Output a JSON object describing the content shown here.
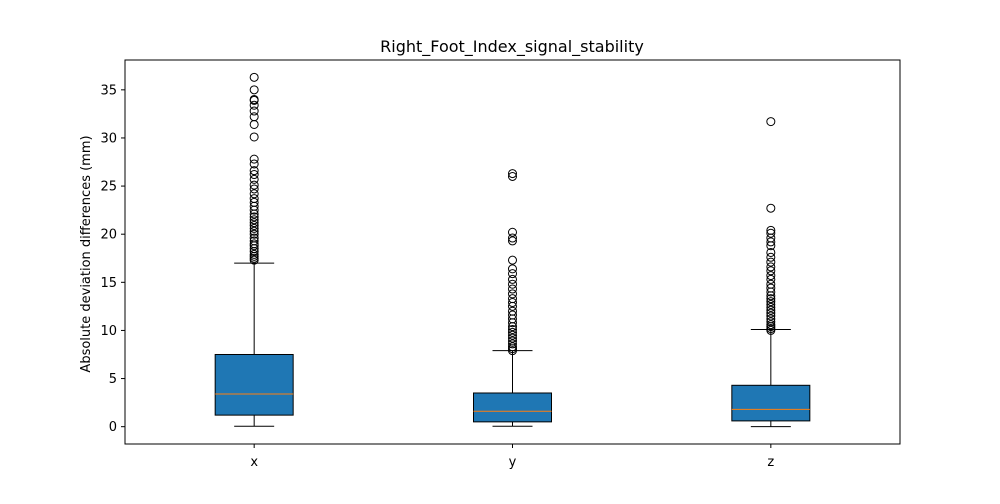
{
  "chart_data": {
    "type": "box",
    "title": "Right_Foot_Index_signal_stability",
    "xlabel": "",
    "ylabel": "Absolute deviation differences (mm)",
    "ylim": [
      -1.8,
      38.1
    ],
    "yticks": [
      0,
      5,
      10,
      15,
      20,
      25,
      30,
      35
    ],
    "categories": [
      "x",
      "y",
      "z"
    ],
    "box_color": "#1f77b4",
    "median_color": "#ff7f0e",
    "series": [
      {
        "name": "x",
        "whisker_low": 0.05,
        "q1": 1.2,
        "median": 3.4,
        "q3": 7.5,
        "whisker_high": 17.0,
        "outliers": [
          17.3,
          17.5,
          17.7,
          17.9,
          18.2,
          18.5,
          18.8,
          19.0,
          19.3,
          19.6,
          20.0,
          20.3,
          20.6,
          20.9,
          21.2,
          21.5,
          21.8,
          22.1,
          22.5,
          22.9,
          23.3,
          23.7,
          24.2,
          24.7,
          25.1,
          25.7,
          26.2,
          26.6,
          27.3,
          27.8,
          30.1,
          31.4,
          32.2,
          32.8,
          33.4,
          33.9,
          34.0,
          35.0,
          36.3
        ]
      },
      {
        "name": "y",
        "whisker_low": 0.05,
        "q1": 0.5,
        "median": 1.6,
        "q3": 3.5,
        "whisker_high": 7.9,
        "outliers": [
          7.9,
          8.1,
          8.3,
          8.6,
          8.9,
          9.2,
          9.5,
          9.8,
          10.1,
          10.4,
          10.8,
          11.2,
          11.6,
          12.0,
          12.5,
          12.9,
          13.3,
          13.8,
          14.3,
          14.8,
          15.3,
          15.9,
          16.4,
          17.3,
          19.3,
          19.6,
          20.2,
          26.0,
          26.3
        ]
      },
      {
        "name": "z",
        "whisker_low": 0.0,
        "q1": 0.6,
        "median": 1.8,
        "q3": 4.3,
        "whisker_high": 10.1,
        "outliers": [
          10.0,
          10.2,
          10.4,
          10.6,
          10.9,
          11.2,
          11.5,
          11.8,
          12.1,
          12.4,
          12.7,
          13.0,
          13.3,
          13.6,
          14.0,
          14.4,
          14.8,
          15.3,
          15.7,
          16.2,
          16.6,
          17.1,
          17.6,
          18.1,
          18.8,
          19.2,
          19.6,
          20.1,
          20.4,
          22.7,
          31.7
        ]
      }
    ]
  }
}
